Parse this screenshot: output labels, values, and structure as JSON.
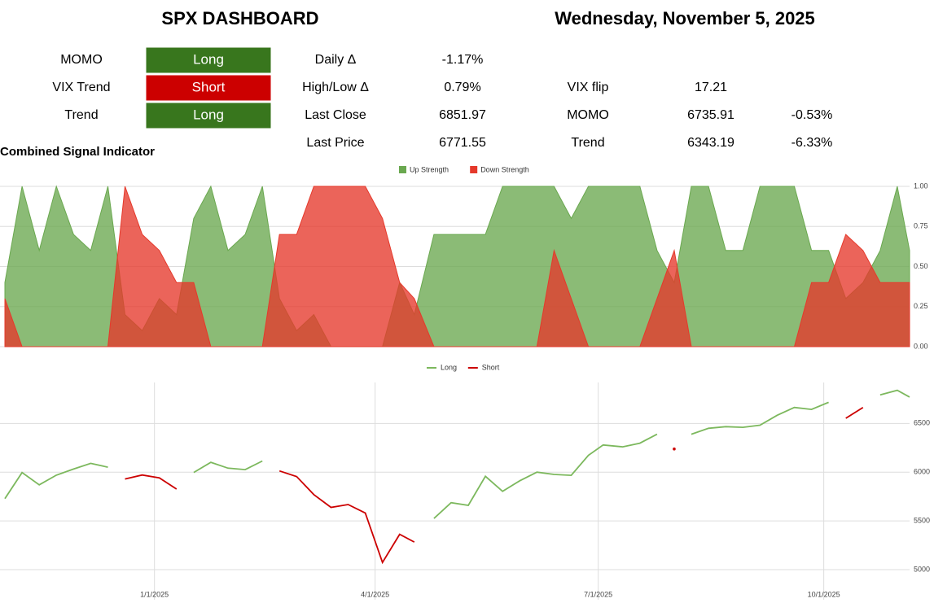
{
  "header": {
    "title": "SPX DASHBOARD",
    "date": "Wednesday, November 5, 2025"
  },
  "signals": [
    {
      "label": "MOMO",
      "value": "Long",
      "color": "#38761d"
    },
    {
      "label": "VIX Trend",
      "value": "Short",
      "color": "#cc0000"
    },
    {
      "label": "Trend",
      "value": "Long",
      "color": "#38761d"
    }
  ],
  "stats": [
    {
      "label": "Daily Δ",
      "value": "-1.17%"
    },
    {
      "label": "High/Low Δ",
      "value": "0.79%"
    },
    {
      "label": "Last Close",
      "value": "6851.97"
    },
    {
      "label": "Last Price",
      "value": "6771.55"
    }
  ],
  "levels": [
    {
      "label": "VIX flip",
      "value": "17.21"
    },
    {
      "label": "MOMO",
      "value": "6735.91",
      "change": "-0.53%"
    },
    {
      "label": "Trend",
      "value": "6343.19",
      "change": "-6.33%"
    }
  ],
  "section_title": "Combined Signal Indicator",
  "chart_data": [
    {
      "type": "area",
      "legend": "top",
      "x": [
        "11/1/2024",
        "11/8/2024",
        "11/15/2024",
        "11/22/2024",
        "11/29/2024",
        "12/6/2024",
        "12/13/2024",
        "12/20/2024",
        "12/27/2024",
        "1/3/2025",
        "1/10/2025",
        "1/17/2025",
        "1/24/2025",
        "1/31/2025",
        "2/7/2025",
        "2/14/2025",
        "2/21/2025",
        "2/28/2025",
        "3/7/2025",
        "3/14/2025",
        "3/21/2025",
        "3/28/2025",
        "4/4/2025",
        "4/11/2025",
        "4/17/2025",
        "4/25/2025",
        "5/2/2025",
        "5/9/2025",
        "5/16/2025",
        "5/23/2025",
        "5/30/2025",
        "6/6/2025",
        "6/13/2025",
        "6/20/2025",
        "6/27/2025",
        "7/3/2025",
        "7/11/2025",
        "7/18/2025",
        "7/25/2025",
        "8/1/2025",
        "8/8/2025",
        "8/15/2025",
        "8/22/2025",
        "8/29/2025",
        "9/5/2025",
        "9/12/2025",
        "9/19/2025",
        "9/26/2025",
        "10/3/2025",
        "10/10/2025",
        "10/17/2025",
        "10/24/2025",
        "10/31/2025",
        "11/5/2025"
      ],
      "xlim": [
        "10/30/2024",
        "11/5/2025"
      ],
      "series": [
        {
          "name": "Up Strength",
          "color": "#6aa84f",
          "values": [
            0.4,
            1,
            0.6,
            1,
            0.7,
            0.6,
            1,
            0.2,
            0.1,
            0.3,
            0.2,
            0.8,
            1,
            0.6,
            0.7,
            1,
            0.3,
            0.1,
            0.2,
            0,
            0,
            0,
            0,
            0.4,
            0.2,
            0.7,
            0.7,
            0.7,
            0.7,
            1,
            1,
            1,
            1,
            0.8,
            1,
            1,
            1,
            1,
            0.6,
            0.4,
            1,
            1,
            0.6,
            0.6,
            1,
            1,
            1,
            0.6,
            0.6,
            0.3,
            0.4,
            0.6,
            1,
            0.6
          ]
        },
        {
          "name": "Down Strength",
          "color": "#e5392b",
          "values": [
            0.3,
            0,
            0,
            0,
            0,
            0,
            0,
            1,
            0.7,
            0.6,
            0.4,
            0.4,
            0,
            0,
            0,
            0,
            0.7,
            0.7,
            1,
            1,
            1,
            1,
            0.8,
            0.4,
            0.3,
            0,
            0,
            0,
            0,
            0,
            0,
            0,
            0.6,
            0.3,
            0,
            0,
            0,
            0,
            0.3,
            0.6,
            0,
            0,
            0,
            0,
            0,
            0,
            0,
            0.4,
            0.4,
            0.7,
            0.6,
            0.4,
            0.4,
            0.4
          ]
        }
      ],
      "ylim": [
        0,
        1
      ],
      "yticks": [
        {
          "value": 0,
          "label": "0.00"
        },
        {
          "value": 0.25,
          "label": "0.25"
        },
        {
          "value": 0.5,
          "label": "0.50"
        },
        {
          "value": 0.75,
          "label": "0.75"
        },
        {
          "value": 1,
          "label": "1.00"
        }
      ],
      "grid": true
    },
    {
      "type": "line",
      "legend": "top",
      "x": [
        "11/1/2024",
        "11/8/2024",
        "11/15/2024",
        "11/22/2024",
        "11/29/2024",
        "12/6/2024",
        "12/13/2024",
        "12/20/2024",
        "12/27/2024",
        "1/3/2025",
        "1/10/2025",
        "1/17/2025",
        "1/24/2025",
        "1/31/2025",
        "2/7/2025",
        "2/14/2025",
        "2/21/2025",
        "2/28/2025",
        "3/7/2025",
        "3/14/2025",
        "3/21/2025",
        "3/28/2025",
        "4/4/2025",
        "4/11/2025",
        "4/17/2025",
        "4/25/2025",
        "5/2/2025",
        "5/9/2025",
        "5/16/2025",
        "5/23/2025",
        "5/30/2025",
        "6/6/2025",
        "6/13/2025",
        "6/20/2025",
        "6/27/2025",
        "7/3/2025",
        "7/11/2025",
        "7/18/2025",
        "7/25/2025",
        "8/1/2025",
        "8/8/2025",
        "8/15/2025",
        "8/22/2025",
        "8/29/2025",
        "9/5/2025",
        "9/12/2025",
        "9/19/2025",
        "9/26/2025",
        "10/3/2025",
        "10/10/2025",
        "10/17/2025",
        "10/24/2025",
        "10/31/2025",
        "11/5/2025"
      ],
      "xlim": [
        "10/30/2024",
        "11/5/2025"
      ],
      "xticks": [
        "1/1/2025",
        "4/1/2025",
        "7/1/2025",
        "10/1/2025"
      ],
      "series": [
        {
          "name": "Long",
          "color": "#7cb85d",
          "values": [
            5729,
            5996,
            5870,
            5969,
            6032,
            6090,
            6051,
            null,
            null,
            null,
            null,
            5997,
            6101,
            6041,
            6026,
            6115,
            null,
            null,
            null,
            null,
            null,
            null,
            null,
            null,
            null,
            5525,
            5687,
            5660,
            5958,
            5803,
            5912,
            6000,
            5977,
            5968,
            6173,
            6279,
            6260,
            6297,
            6389,
            null,
            6389,
            6450,
            6467,
            6460,
            6482,
            6584,
            6664,
            6644,
            6716,
            null,
            null,
            6792,
            6840,
            6771
          ]
        },
        {
          "name": "Short",
          "color": "#cc0000",
          "values": [
            null,
            null,
            null,
            null,
            null,
            null,
            null,
            5930,
            5971,
            5942,
            5827,
            null,
            null,
            null,
            null,
            null,
            6013,
            5955,
            5770,
            5639,
            5668,
            5581,
            5074,
            5363,
            5283,
            null,
            null,
            null,
            null,
            null,
            null,
            null,
            null,
            null,
            null,
            null,
            null,
            null,
            null,
            6238,
            null,
            null,
            null,
            null,
            null,
            null,
            null,
            null,
            null,
            6553,
            6664,
            null,
            null,
            null
          ]
        }
      ],
      "ylim": [
        4750,
        6920
      ],
      "yticks": [
        5000,
        5500,
        6000,
        6500
      ],
      "grid": true
    }
  ]
}
